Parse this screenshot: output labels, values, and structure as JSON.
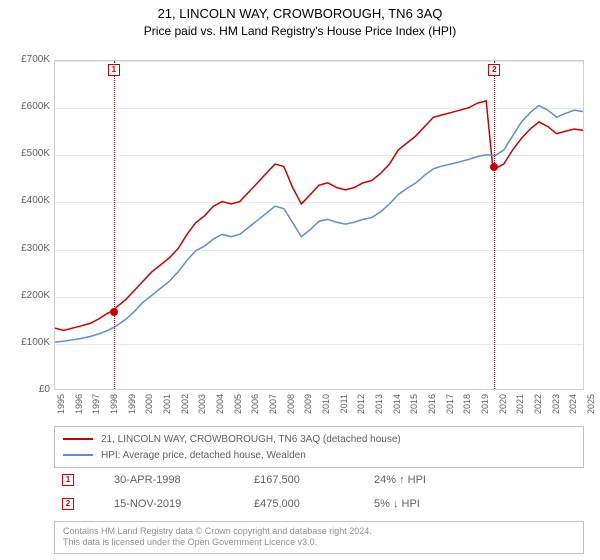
{
  "title": "21, LINCOLN WAY, CROWBOROUGH, TN6 3AQ",
  "subtitle": "Price paid vs. HM Land Registry's House Price Index (HPI)",
  "chart": {
    "type": "line",
    "background_color": "#ffffff",
    "grid_color": "#e8e8e8",
    "border_color": "#d0d0d0",
    "ylim": [
      0,
      700000
    ],
    "ytick_step": 100000,
    "y_prefix": "£",
    "y_suffix": "K",
    "y_ticks": [
      "£0",
      "£100K",
      "£200K",
      "£300K",
      "£400K",
      "£500K",
      "£600K",
      "£700K"
    ],
    "x_years": [
      1995,
      1996,
      1997,
      1998,
      1999,
      2000,
      2001,
      2002,
      2003,
      2004,
      2005,
      2006,
      2007,
      2008,
      2009,
      2010,
      2011,
      2012,
      2013,
      2014,
      2015,
      2016,
      2017,
      2018,
      2019,
      2020,
      2021,
      2022,
      2023,
      2024,
      2025
    ],
    "label_fontsize": 10,
    "tick_fontsize": 9,
    "series": [
      {
        "name": "21, LINCOLN WAY, CROWBOROUGH, TN6 3AQ (detached house)",
        "color": "#cc0000",
        "line_width": 1.5,
        "data": [
          [
            1995,
            130000
          ],
          [
            1995.5,
            125000
          ],
          [
            1996,
            130000
          ],
          [
            1996.5,
            135000
          ],
          [
            1997,
            140000
          ],
          [
            1997.5,
            150000
          ],
          [
            1998,
            162000
          ],
          [
            1998.33,
            167500
          ],
          [
            1998.5,
            175000
          ],
          [
            1999,
            190000
          ],
          [
            1999.5,
            210000
          ],
          [
            2000,
            230000
          ],
          [
            2000.5,
            250000
          ],
          [
            2001,
            265000
          ],
          [
            2001.5,
            280000
          ],
          [
            2002,
            300000
          ],
          [
            2002.5,
            330000
          ],
          [
            2003,
            355000
          ],
          [
            2003.5,
            370000
          ],
          [
            2004,
            390000
          ],
          [
            2004.5,
            400000
          ],
          [
            2005,
            395000
          ],
          [
            2005.5,
            400000
          ],
          [
            2006,
            420000
          ],
          [
            2006.5,
            440000
          ],
          [
            2007,
            460000
          ],
          [
            2007.5,
            480000
          ],
          [
            2008,
            475000
          ],
          [
            2008.5,
            430000
          ],
          [
            2009,
            395000
          ],
          [
            2009.5,
            415000
          ],
          [
            2010,
            435000
          ],
          [
            2010.5,
            440000
          ],
          [
            2011,
            430000
          ],
          [
            2011.5,
            425000
          ],
          [
            2012,
            430000
          ],
          [
            2012.5,
            440000
          ],
          [
            2013,
            445000
          ],
          [
            2013.5,
            460000
          ],
          [
            2014,
            480000
          ],
          [
            2014.5,
            510000
          ],
          [
            2015,
            525000
          ],
          [
            2015.5,
            540000
          ],
          [
            2016,
            560000
          ],
          [
            2016.5,
            580000
          ],
          [
            2017,
            585000
          ],
          [
            2017.5,
            590000
          ],
          [
            2018,
            595000
          ],
          [
            2018.5,
            600000
          ],
          [
            2019,
            610000
          ],
          [
            2019.5,
            615000
          ],
          [
            2019.87,
            475000
          ],
          [
            2020,
            470000
          ],
          [
            2020.5,
            480000
          ],
          [
            2021,
            510000
          ],
          [
            2021.5,
            535000
          ],
          [
            2022,
            555000
          ],
          [
            2022.5,
            570000
          ],
          [
            2023,
            560000
          ],
          [
            2023.5,
            545000
          ],
          [
            2024,
            550000
          ],
          [
            2024.5,
            555000
          ],
          [
            2025,
            552000
          ]
        ]
      },
      {
        "name": "HPI: Average price, detached house, Wealden",
        "color": "#5b8fd6",
        "line_width": 1.5,
        "data": [
          [
            1995,
            100000
          ],
          [
            1995.5,
            102000
          ],
          [
            1996,
            105000
          ],
          [
            1996.5,
            108000
          ],
          [
            1997,
            112000
          ],
          [
            1997.5,
            118000
          ],
          [
            1998,
            125000
          ],
          [
            1998.5,
            135000
          ],
          [
            1999,
            148000
          ],
          [
            1999.5,
            165000
          ],
          [
            2000,
            185000
          ],
          [
            2000.5,
            200000
          ],
          [
            2001,
            215000
          ],
          [
            2001.5,
            230000
          ],
          [
            2002,
            250000
          ],
          [
            2002.5,
            275000
          ],
          [
            2003,
            295000
          ],
          [
            2003.5,
            305000
          ],
          [
            2004,
            320000
          ],
          [
            2004.5,
            330000
          ],
          [
            2005,
            325000
          ],
          [
            2005.5,
            330000
          ],
          [
            2006,
            345000
          ],
          [
            2006.5,
            360000
          ],
          [
            2007,
            375000
          ],
          [
            2007.5,
            390000
          ],
          [
            2008,
            385000
          ],
          [
            2008.5,
            355000
          ],
          [
            2009,
            325000
          ],
          [
            2009.5,
            340000
          ],
          [
            2010,
            358000
          ],
          [
            2010.5,
            362000
          ],
          [
            2011,
            356000
          ],
          [
            2011.5,
            352000
          ],
          [
            2012,
            356000
          ],
          [
            2012.5,
            362000
          ],
          [
            2013,
            366000
          ],
          [
            2013.5,
            378000
          ],
          [
            2014,
            395000
          ],
          [
            2014.5,
            415000
          ],
          [
            2015,
            428000
          ],
          [
            2015.5,
            440000
          ],
          [
            2016,
            456000
          ],
          [
            2016.5,
            470000
          ],
          [
            2017,
            476000
          ],
          [
            2017.5,
            480000
          ],
          [
            2018,
            485000
          ],
          [
            2018.5,
            490000
          ],
          [
            2019,
            496000
          ],
          [
            2019.5,
            500000
          ],
          [
            2020,
            498000
          ],
          [
            2020.5,
            510000
          ],
          [
            2021,
            540000
          ],
          [
            2021.5,
            570000
          ],
          [
            2022,
            590000
          ],
          [
            2022.5,
            605000
          ],
          [
            2023,
            595000
          ],
          [
            2023.5,
            580000
          ],
          [
            2024,
            588000
          ],
          [
            2024.5,
            595000
          ],
          [
            2025,
            592000
          ]
        ]
      }
    ],
    "markers": [
      {
        "id": "1",
        "x": 1998.33,
        "y": 167500
      },
      {
        "id": "2",
        "x": 2019.87,
        "y": 475000
      }
    ]
  },
  "legend": {
    "items": [
      {
        "color": "#cc0000",
        "label": "21, LINCOLN WAY, CROWBOROUGH, TN6 3AQ (detached house)"
      },
      {
        "color": "#5b8fd6",
        "label": "HPI: Average price, detached house, Wealden"
      }
    ]
  },
  "annotations": [
    {
      "id": "1",
      "date": "30-APR-1998",
      "price": "£167,500",
      "delta": "24% ↑ HPI"
    },
    {
      "id": "2",
      "date": "15-NOV-2019",
      "price": "£475,000",
      "delta": "5% ↓ HPI"
    }
  ],
  "footer": {
    "line1": "Contains HM Land Registry data © Crown copyright and database right 2024.",
    "line2": "This data is licensed under the Open Government Licence v3.0."
  }
}
